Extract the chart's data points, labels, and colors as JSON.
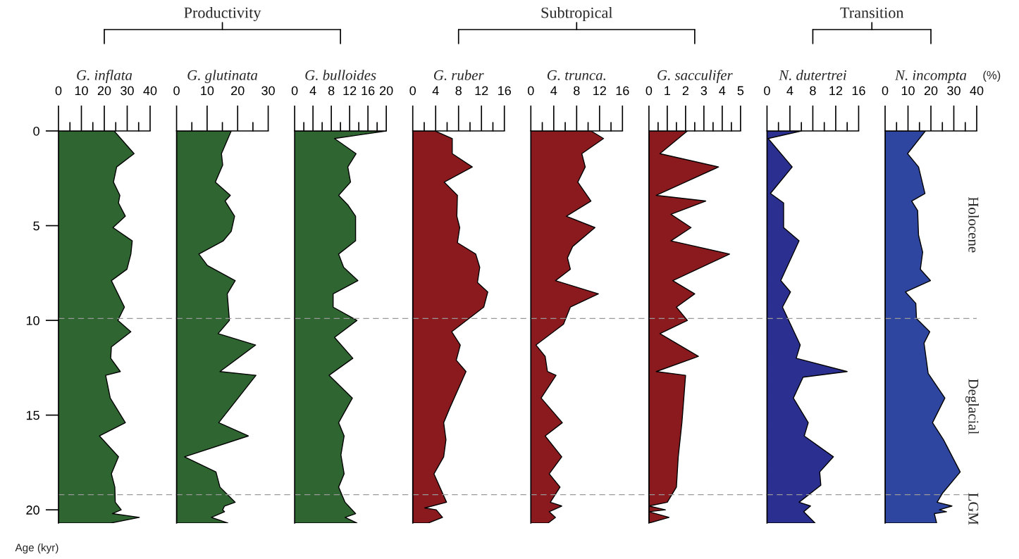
{
  "chart_data": [
    {
      "type": "area",
      "orientation": "horizontal",
      "title": "G. inflata",
      "ylabel": "Age (kyr)",
      "color": "#2e6530",
      "x": [
        0,
        1.2,
        1.9,
        2.7,
        3.4,
        3.8,
        4.5,
        5.1,
        5.8,
        6.5,
        7.3,
        7.9,
        9.3,
        10.0,
        10.6,
        11.4,
        12.0,
        12.7,
        12.9,
        14.1,
        15.4,
        16.1,
        17.2,
        18.1,
        18.8,
        19.6,
        20.0,
        20.2,
        20.4,
        20.7
      ],
      "values": [
        24.3,
        33.0,
        25.4,
        24.0,
        26.8,
        26.2,
        29.2,
        23.8,
        32.2,
        31.6,
        29.9,
        23.1,
        28.8,
        25.9,
        31.6,
        23.1,
        22.8,
        27.0,
        20.6,
        22.6,
        29.2,
        17.9,
        26.2,
        23.1,
        24.6,
        24.8,
        27.4,
        23.5,
        35.3,
        22.8
      ],
      "xlim": [
        0,
        40
      ],
      "xticks": [
        0,
        {
          "value": 5,
          "label": null
        },
        10,
        {
          "value": 15,
          "label": null
        },
        20,
        {
          "value": 25,
          "label": null
        },
        30,
        {
          "value": 35,
          "label": null
        },
        40
      ],
      "ylim": [
        20.7,
        0
      ],
      "yticks": [
        0,
        5,
        10,
        15,
        20
      ],
      "ref_lines": [
        {
          "axis": "y",
          "value": 9.9,
          "color": "#999999",
          "line_style": "dashed"
        },
        {
          "axis": "y",
          "value": 19.2,
          "color": "#999999",
          "line_style": "dashed"
        }
      ]
    },
    {
      "type": "area",
      "orientation": "horizontal",
      "title": "G. glutinata",
      "subtitle": "Productivity",
      "color": "#2e6530",
      "tick_labels": "x",
      "x": [
        0,
        1.2,
        1.8,
        2.7,
        3.4,
        3.7,
        4.5,
        5.3,
        5.8,
        6.5,
        7.1,
        7.9,
        8.6,
        10.0,
        10.7,
        11.3,
        12.7,
        12.9,
        15.4,
        16.1,
        17.2,
        18.0,
        18.8,
        19.6,
        19.8,
        20.0,
        20.1,
        20.4,
        20.7
      ],
      "values": [
        17.9,
        14.7,
        15.1,
        12.7,
        17.6,
        15.9,
        19.0,
        17.9,
        15.3,
        7.3,
        10.1,
        19.2,
        16.6,
        17.3,
        13.6,
        25.9,
        14.2,
        26.0,
        13.8,
        23.5,
        2.6,
        12.9,
        14.2,
        19.2,
        15.7,
        15.1,
        15.7,
        11.4,
        16.8
      ],
      "xlim": [
        0,
        30
      ],
      "xticks": [
        0,
        {
          "value": 5,
          "label": null
        },
        10,
        {
          "value": 15,
          "label": null
        },
        20,
        {
          "value": 25,
          "label": null
        },
        30
      ],
      "ylim": [
        20.7,
        0
      ],
      "ref_lines": [
        {
          "axis": "y",
          "value": 9.9,
          "color": "#999999",
          "line_style": "dashed"
        },
        {
          "axis": "y",
          "value": 19.2,
          "color": "#999999",
          "line_style": "dashed"
        }
      ]
    },
    {
      "type": "area",
      "orientation": "horizontal",
      "title": "G. bulloides",
      "color": "#2e6530",
      "tick_labels": "x",
      "x": [
        0,
        0.4,
        1.2,
        1.9,
        2.7,
        3.4,
        3.9,
        4.5,
        5.8,
        6.5,
        7.2,
        7.9,
        8.6,
        9.3,
        10.0,
        10.9,
        12.0,
        12.9,
        14.1,
        15.4,
        16.1,
        17.1,
        18.1,
        18.8,
        19.6,
        20.2,
        20.4,
        20.7
      ],
      "values": [
        20,
        8.7,
        13.4,
        11.6,
        12.2,
        9.6,
        11.6,
        13.3,
        13.3,
        9.6,
        10.7,
        13.8,
        8.4,
        8.4,
        13.6,
        8.7,
        12.7,
        7.5,
        12.6,
        9.6,
        10.8,
        10.1,
        10.8,
        9.6,
        11.0,
        13.3,
        11.0,
        13.6
      ],
      "xlim": [
        0,
        20
      ],
      "xticks": [
        0,
        {
          "value": 2,
          "label": null
        },
        4,
        {
          "value": 6,
          "label": null
        },
        8,
        {
          "value": 10,
          "label": null
        },
        12,
        {
          "value": 14,
          "label": null
        },
        16,
        {
          "value": 18,
          "label": null
        },
        20
      ],
      "ylim": [
        20.7,
        0
      ],
      "ref_lines": [
        {
          "axis": "y",
          "value": 9.9,
          "color": "#999999",
          "line_style": "dashed"
        },
        {
          "axis": "y",
          "value": 19.2,
          "color": "#999999",
          "line_style": "dashed"
        }
      ]
    },
    {
      "type": "area",
      "orientation": "horizontal",
      "title": "G. ruber",
      "color": "#8b1a1f",
      "tick_labels": "x",
      "x": [
        0,
        0.4,
        1.2,
        1.9,
        2.7,
        3.4,
        4.5,
        5.1,
        5.9,
        6.5,
        7.2,
        8.0,
        8.5,
        9.3,
        10.6,
        11.3,
        12.1,
        12.7,
        14.6,
        15.4,
        16.3,
        17.2,
        18.1,
        19.6,
        19.9,
        20.0,
        20.4,
        20.7
      ],
      "values": [
        3.9,
        6.9,
        6.9,
        10.4,
        5.5,
        7.8,
        7.7,
        8.2,
        7.8,
        11.0,
        11.7,
        11.3,
        13.1,
        12.4,
        6.8,
        8.3,
        7.6,
        9.3,
        6.5,
        5.4,
        5.8,
        5.4,
        3.7,
        5.9,
        2.1,
        4.1,
        5.2,
        2.7
      ],
      "xlim": [
        0,
        16
      ],
      "xticks": [
        0,
        {
          "value": 2,
          "label": null
        },
        4,
        {
          "value": 6,
          "label": null
        },
        8,
        {
          "value": 10,
          "label": null
        },
        12,
        {
          "value": 14,
          "label": null
        },
        16
      ],
      "ylim": [
        20.7,
        0
      ],
      "ref_lines": [
        {
          "axis": "y",
          "value": 9.9,
          "color": "#999999",
          "line_style": "dashed"
        },
        {
          "axis": "y",
          "value": 19.2,
          "color": "#999999",
          "line_style": "dashed"
        }
      ]
    },
    {
      "type": "area",
      "orientation": "horizontal",
      "title": "G. trunca.",
      "subtitle": "Subtropical",
      "color": "#8b1a1f",
      "tick_labels": "x",
      "x": [
        0,
        0.4,
        1.2,
        1.9,
        2.7,
        3.7,
        4.5,
        5.1,
        6.1,
        6.7,
        7.3,
        7.9,
        8.6,
        9.3,
        10.2,
        11.3,
        11.9,
        12.7,
        12.9,
        14.1,
        15.4,
        16.1,
        17.2,
        18.1,
        18.8,
        19.6,
        19.8,
        20.1,
        20.4,
        20.7
      ],
      "values": [
        10.5,
        12.7,
        8.9,
        9.5,
        8.2,
        10.5,
        6.2,
        11.2,
        7.3,
        6.4,
        6.9,
        4.3,
        11.8,
        6.9,
        5.7,
        0.9,
        2.5,
        2.9,
        4.4,
        1.8,
        5.5,
        2.5,
        5.4,
        3.2,
        5.1,
        3.4,
        5.4,
        3.2,
        4.3,
        3.0
      ],
      "xlim": [
        0,
        16
      ],
      "xticks": [
        0,
        {
          "value": 2,
          "label": null
        },
        4,
        {
          "value": 6,
          "label": null
        },
        8,
        {
          "value": 10,
          "label": null
        },
        12,
        {
          "value": 14,
          "label": null
        },
        16
      ],
      "ylim": [
        20.7,
        0
      ],
      "ref_lines": [
        {
          "axis": "y",
          "value": 9.9,
          "color": "#999999",
          "line_style": "dashed"
        },
        {
          "axis": "y",
          "value": 19.2,
          "color": "#999999",
          "line_style": "dashed"
        }
      ]
    },
    {
      "type": "area",
      "orientation": "horizontal",
      "title": "G. sacculifer",
      "color": "#8b1a1f",
      "tick_labels": "x",
      "x": [
        0,
        1.2,
        1.9,
        3.4,
        3.7,
        4.4,
        5.1,
        5.8,
        6.5,
        7.9,
        8.6,
        9.3,
        10.0,
        10.7,
        11.9,
        12.7,
        12.9,
        15.4,
        17.2,
        18.8,
        19.6,
        19.8,
        20.0,
        20.1,
        20.4,
        20.7
      ],
      "values": [
        2.1,
        0.6,
        3.8,
        0.4,
        3.1,
        1.2,
        2.3,
        1.2,
        4.4,
        1.3,
        2.5,
        1.5,
        2.1,
        0.6,
        2.7,
        0.4,
        2.0,
        1.8,
        1.6,
        1.5,
        1.0,
        0,
        0.9,
        0,
        1.1,
        0
      ],
      "xlim": [
        0,
        5
      ],
      "xticks": [
        0,
        {
          "value": 0.5,
          "label": null
        },
        1,
        {
          "value": 1.5,
          "label": null
        },
        2,
        {
          "value": 2.5,
          "label": null
        },
        3,
        {
          "value": 3.5,
          "label": null
        },
        4,
        {
          "value": 4.5,
          "label": null
        },
        5
      ],
      "ylim": [
        20.7,
        0
      ],
      "ref_lines": [
        {
          "axis": "y",
          "value": 9.9,
          "color": "#999999",
          "line_style": "dashed"
        },
        {
          "axis": "y",
          "value": 19.2,
          "color": "#999999",
          "line_style": "dashed"
        }
      ]
    },
    {
      "type": "area",
      "orientation": "horizontal",
      "title": "N. dutertrei",
      "color": "#2b2f8f",
      "tick_labels": "x",
      "x": [
        0,
        0.4,
        1.9,
        3.3,
        3.8,
        5.1,
        5.8,
        7.9,
        8.5,
        9.3,
        11.3,
        12.0,
        12.7,
        13.0,
        14.1,
        15.4,
        16.1,
        17.2,
        18.0,
        18.7,
        19.6,
        19.8,
        20.1,
        20.7
      ],
      "values": [
        6.0,
        0.2,
        4.4,
        0.6,
        2.9,
        2.9,
        5.6,
        2.4,
        4.1,
        2.7,
        5.8,
        5.1,
        14.0,
        6.3,
        4.6,
        7.2,
        6.5,
        11.6,
        9.2,
        9.4,
        5.6,
        7.6,
        6.4,
        8.4
      ],
      "xlim": [
        0,
        16
      ],
      "xticks": [
        0,
        {
          "value": 2,
          "label": null
        },
        4,
        {
          "value": 6,
          "label": null
        },
        8,
        {
          "value": 10,
          "label": null
        },
        12,
        {
          "value": 14,
          "label": null
        },
        16
      ],
      "ylim": [
        20.7,
        0
      ],
      "ref_lines": [
        {
          "axis": "y",
          "value": 9.9,
          "color": "#999999",
          "line_style": "dashed"
        },
        {
          "axis": "y",
          "value": 19.2,
          "color": "#999999",
          "line_style": "dashed"
        }
      ]
    },
    {
      "type": "area",
      "orientation": "horizontal",
      "title": "N. incompta",
      "subtitle": "Transition",
      "xlabel": "(%)",
      "color": "#2f46a0",
      "tick_labels": "x",
      "annotations": [
        "Holocene",
        "Deglacial",
        "LGM"
      ],
      "x": [
        0,
        1.2,
        1.9,
        3.3,
        3.7,
        4.2,
        5.5,
        6.4,
        7.3,
        7.9,
        8.5,
        9.1,
        9.9,
        10.6,
        11.2,
        12.8,
        14.1,
        15.4,
        16.3,
        18.0,
        19.1,
        19.6,
        19.8,
        20.0,
        20.1,
        20.2,
        20.7
      ],
      "values": [
        17.6,
        9.8,
        14.6,
        17.4,
        11.6,
        14.2,
        14.6,
        16.4,
        15.4,
        19.8,
        8.9,
        13.4,
        13.7,
        19.5,
        17.0,
        18.8,
        26.1,
        20.7,
        25.5,
        32.8,
        25.2,
        22.7,
        29.2,
        23.7,
        26.8,
        21.5,
        22.5
      ],
      "xlim": [
        0,
        40
      ],
      "xticks": [
        0,
        {
          "value": 5,
          "label": null
        },
        10,
        {
          "value": 15,
          "label": null
        },
        20,
        {
          "value": 25,
          "label": null
        },
        30,
        {
          "value": 35,
          "label": null
        },
        40
      ],
      "ylim": [
        20.7,
        0
      ],
      "ref_lines": [
        {
          "axis": "y",
          "value": 9.9,
          "color": "#999999",
          "line_style": "dashed"
        },
        {
          "axis": "y",
          "value": 19.2,
          "color": "#999999",
          "line_style": "dashed"
        }
      ]
    }
  ]
}
